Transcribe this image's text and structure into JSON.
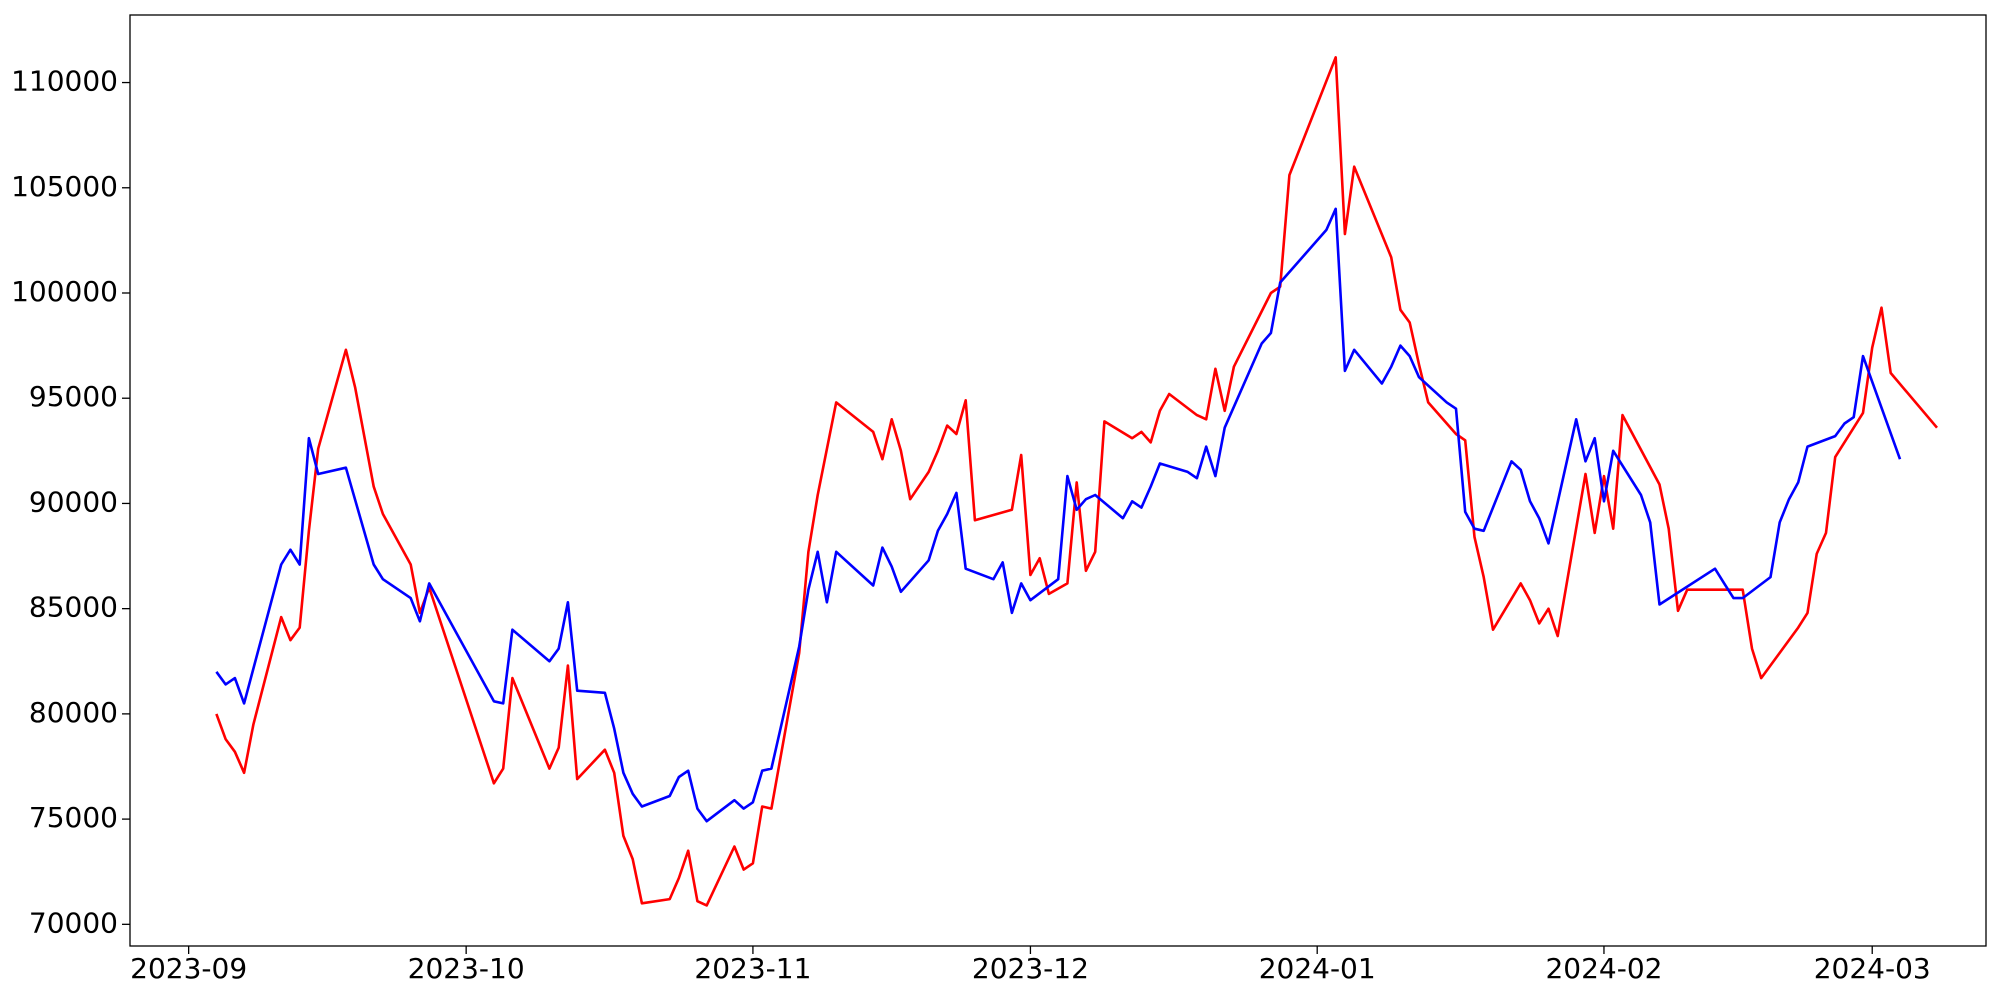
{
  "chart_data": {
    "type": "line",
    "xlim": [
      -6.34,
      194.3
    ],
    "xticks": [
      {
        "value": 0,
        "label": "2023-09"
      },
      {
        "value": 30,
        "label": "2023-10"
      },
      {
        "value": 61,
        "label": "2023-11"
      },
      {
        "value": 91,
        "label": "2023-12"
      },
      {
        "value": 122,
        "label": "2024-01"
      },
      {
        "value": 153,
        "label": "2024-02"
      },
      {
        "value": 182,
        "label": "2024-03"
      }
    ],
    "ylim": [
      68970,
      113210
    ],
    "yticks": [
      70000,
      75000,
      80000,
      85000,
      90000,
      95000,
      100000,
      105000,
      110000
    ],
    "series": [
      {
        "color": "#ff0000",
        "x": [
          3,
          4,
          5,
          6,
          7,
          10,
          11,
          12,
          13,
          14,
          17,
          18,
          20,
          21,
          24,
          25,
          26,
          33,
          34,
          35,
          39,
          40,
          41,
          42,
          45,
          46,
          47,
          48,
          49,
          52,
          53,
          54,
          55,
          56,
          59,
          60,
          61,
          62,
          63,
          66,
          67,
          68,
          70,
          74,
          75,
          76,
          77,
          78,
          80,
          81,
          82,
          83,
          84,
          85,
          89,
          90,
          91,
          92,
          93,
          95,
          96,
          97,
          98,
          99,
          102,
          103,
          104,
          105,
          106,
          109,
          110,
          111,
          112,
          113,
          117,
          118,
          119,
          124,
          125,
          126,
          130,
          131,
          132,
          133,
          134,
          137,
          138,
          139,
          140,
          141,
          144,
          145,
          146,
          147,
          148,
          151,
          152,
          153,
          154,
          155,
          159,
          160,
          161,
          162,
          168,
          169,
          170,
          174,
          175,
          176,
          177,
          178,
          181,
          182,
          183,
          184,
          189
        ],
        "values": [
          80000,
          78800,
          78200,
          77200,
          79500,
          84600,
          83500,
          84100,
          88700,
          92600,
          97300,
          95500,
          90800,
          89500,
          87100,
          84800,
          86000,
          76700,
          77400,
          81700,
          77400,
          78400,
          82300,
          76900,
          78300,
          77200,
          74200,
          73100,
          71000,
          71200,
          72200,
          73500,
          71100,
          70900,
          73700,
          72600,
          72900,
          75600,
          75500,
          82900,
          87700,
          90400,
          94800,
          93400,
          92100,
          94000,
          92500,
          90200,
          91500,
          92500,
          93700,
          93300,
          94900,
          89200,
          89700,
          92300,
          86600,
          87400,
          85700,
          86200,
          91000,
          86800,
          87700,
          93900,
          93100,
          93400,
          92900,
          94400,
          95200,
          94200,
          94000,
          96400,
          94400,
          96500,
          100000,
          100300,
          105600,
          111200,
          102800,
          106000,
          101700,
          99200,
          98600,
          96600,
          94800,
          93300,
          93000,
          88400,
          86500,
          84000,
          86200,
          85400,
          84300,
          85000,
          83700,
          91400,
          88600,
          91300,
          88800,
          94200,
          90900,
          88800,
          84900,
          85900,
          85900,
          83100,
          81700,
          84100,
          84800,
          87600,
          88600,
          92200,
          94300,
          97400,
          99300,
          96200,
          93600
        ]
      },
      {
        "color": "#0000ff",
        "x": [
          3,
          4,
          5,
          6,
          10,
          11,
          12,
          13,
          14,
          17,
          20,
          21,
          24,
          25,
          26,
          33,
          34,
          35,
          39,
          40,
          41,
          42,
          45,
          46,
          47,
          48,
          49,
          52,
          53,
          54,
          55,
          56,
          59,
          60,
          61,
          62,
          63,
          66,
          67,
          68,
          69,
          70,
          74,
          75,
          76,
          77,
          80,
          81,
          82,
          83,
          84,
          87,
          88,
          89,
          90,
          91,
          94,
          95,
          96,
          97,
          98,
          101,
          102,
          103,
          104,
          105,
          108,
          109,
          110,
          111,
          112,
          116,
          117,
          118,
          123,
          124,
          125,
          126,
          129,
          130,
          131,
          132,
          133,
          136,
          137,
          138,
          139,
          140,
          143,
          144,
          145,
          146,
          147,
          150,
          151,
          152,
          153,
          154,
          157,
          158,
          159,
          165,
          166,
          167,
          168,
          171,
          172,
          173,
          174,
          175,
          178,
          179,
          180,
          181,
          185
        ],
        "values": [
          82000,
          81400,
          81700,
          80500,
          87100,
          87800,
          87100,
          93100,
          91400,
          91700,
          87100,
          86400,
          85500,
          84400,
          86200,
          80600,
          80500,
          84000,
          82500,
          83100,
          85300,
          81100,
          81000,
          79300,
          77200,
          76200,
          75600,
          76100,
          77000,
          77300,
          75500,
          74900,
          75900,
          75500,
          75800,
          77300,
          77400,
          83200,
          85900,
          87700,
          85300,
          87700,
          86100,
          87900,
          87000,
          85800,
          87300,
          88700,
          89500,
          90500,
          86900,
          86400,
          87200,
          84800,
          86200,
          85400,
          86400,
          91300,
          89700,
          90200,
          90400,
          89300,
          90100,
          89800,
          90800,
          91900,
          91500,
          91200,
          92700,
          91300,
          93600,
          97600,
          98100,
          100500,
          103000,
          104000,
          96300,
          97300,
          95700,
          96500,
          97500,
          97000,
          96000,
          94800,
          94500,
          89600,
          88800,
          88700,
          92000,
          91600,
          90100,
          89300,
          88100,
          94000,
          92000,
          93100,
          90100,
          92500,
          90400,
          89100,
          85200,
          86900,
          86200,
          85500,
          85500,
          86500,
          89100,
          90200,
          91000,
          92700,
          93200,
          93800,
          94100,
          97000,
          92100
        ]
      }
    ]
  }
}
